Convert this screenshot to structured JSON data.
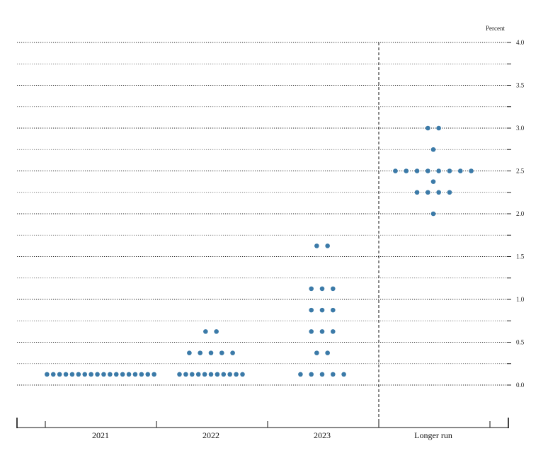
{
  "chart_data": {
    "type": "scatter",
    "unit_label": "Percent",
    "ylim": [
      0,
      4
    ],
    "yticks": [
      "0.0",
      "0.5",
      "1.0",
      "1.5",
      "2.0",
      "2.5",
      "3.0",
      "3.5",
      "4.0"
    ],
    "grid": true,
    "categories": [
      "2021",
      "2022",
      "2023",
      "Longer run"
    ],
    "dots": [
      {
        "category": "2021",
        "y": 0.125,
        "count": 18
      },
      {
        "category": "2022",
        "y": 0.125,
        "count": 11
      },
      {
        "category": "2022",
        "y": 0.375,
        "count": 5
      },
      {
        "category": "2022",
        "y": 0.625,
        "count": 2
      },
      {
        "category": "2023",
        "y": 0.125,
        "count": 5
      },
      {
        "category": "2023",
        "y": 0.375,
        "count": 2
      },
      {
        "category": "2023",
        "y": 0.625,
        "count": 3
      },
      {
        "category": "2023",
        "y": 0.875,
        "count": 3
      },
      {
        "category": "2023",
        "y": 1.125,
        "count": 3
      },
      {
        "category": "2023",
        "y": 1.625,
        "count": 2
      },
      {
        "category": "Longer run",
        "y": 2.0,
        "count": 1
      },
      {
        "category": "Longer run",
        "y": 2.25,
        "count": 4
      },
      {
        "category": "Longer run",
        "y": 2.375,
        "count": 1
      },
      {
        "category": "Longer run",
        "y": 2.5,
        "count": 8
      },
      {
        "category": "Longer run",
        "y": 2.75,
        "count": 1
      },
      {
        "category": "Longer run",
        "y": 3.0,
        "count": 2
      }
    ],
    "dot_color": "#3b7aa8"
  }
}
